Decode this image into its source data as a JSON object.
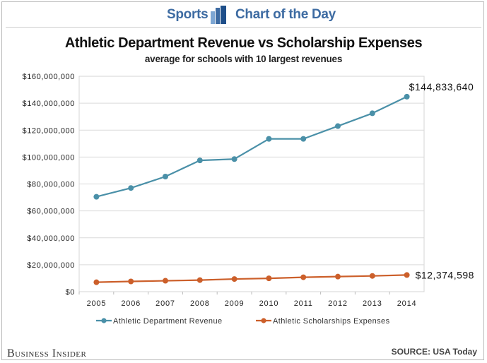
{
  "header": {
    "left_label": "Sports",
    "right_label": "Chart of the Day",
    "logo_icon": "bar-logo-icon",
    "accent": "#3d6ba2"
  },
  "chart_data": {
    "type": "line",
    "title": "Athletic Department Revenue vs Scholarship Expenses",
    "subtitle": "average for schools with 10 largest revenues",
    "categories": [
      "2005",
      "2006",
      "2007",
      "2008",
      "2009",
      "2010",
      "2011",
      "2012",
      "2013",
      "2014"
    ],
    "yticks": [
      "$160,000,000",
      "$140,000,000",
      "$120,000,000",
      "$100,000,000",
      "$80,000,000",
      "$60,000,000",
      "$40,000,000",
      "$20,000,000",
      "$0"
    ],
    "ylim": [
      0,
      160000000
    ],
    "series": [
      {
        "name": "Athletic Department Revenue",
        "color": "#4a90a8",
        "values": [
          70500000,
          77000000,
          85500000,
          97500000,
          98500000,
          113500000,
          113500000,
          123000000,
          132500000,
          144833640
        ],
        "end_label": "$144,833,640"
      },
      {
        "name": "Athletic Scholarships Expenses",
        "color": "#cc5f2a",
        "values": [
          7000000,
          7600000,
          8100000,
          8600000,
          9400000,
          9900000,
          10700000,
          11200000,
          11700000,
          12374598
        ],
        "end_label": "$12,374,598"
      }
    ],
    "legend_position": "bottom-left",
    "grid": true
  },
  "footer": {
    "brand": "Business Insider",
    "source": "SOURCE: USA Today"
  }
}
